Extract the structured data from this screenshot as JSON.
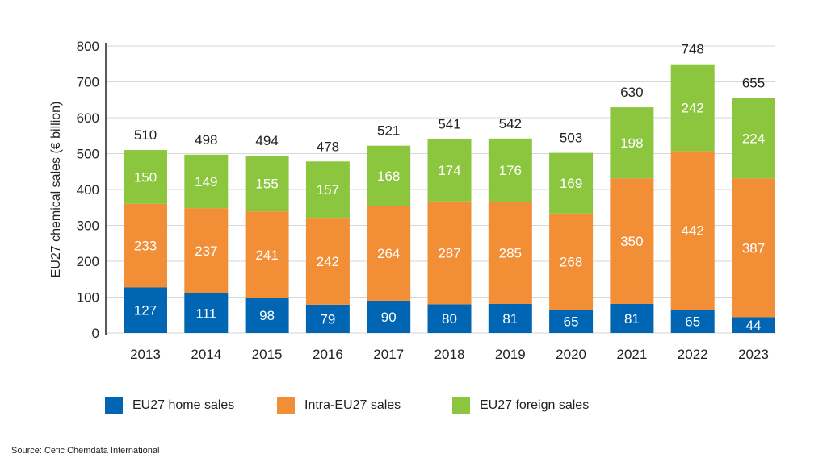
{
  "chart_data": {
    "type": "bar",
    "stacked": true,
    "ylabel": "EU27 chemical sales (€ billion)",
    "xlabel": "",
    "ylim": [
      0,
      800
    ],
    "yticks": [
      0,
      100,
      200,
      300,
      400,
      500,
      600,
      700,
      800
    ],
    "grid": true,
    "legend_position": "bottom",
    "categories": [
      "2013",
      "2014",
      "2015",
      "2016",
      "2017",
      "2018",
      "2019",
      "2020",
      "2021",
      "2022",
      "2023"
    ],
    "series": [
      {
        "name": "EU27 home sales",
        "color": "#0066b3",
        "values": [
          127,
          111,
          98,
          79,
          90,
          80,
          81,
          65,
          81,
          65,
          44
        ]
      },
      {
        "name": "Intra-EU27 sales",
        "color": "#f28e35",
        "values": [
          233,
          237,
          241,
          242,
          264,
          287,
          285,
          268,
          350,
          442,
          387
        ]
      },
      {
        "name": "EU27 foreign sales",
        "color": "#8cc63f",
        "values": [
          150,
          149,
          155,
          157,
          168,
          174,
          176,
          169,
          198,
          242,
          224
        ]
      }
    ],
    "totals": [
      510,
      498,
      494,
      478,
      521,
      541,
      542,
      503,
      630,
      748,
      655
    ]
  },
  "source": "Source: Cefic Chemdata International"
}
